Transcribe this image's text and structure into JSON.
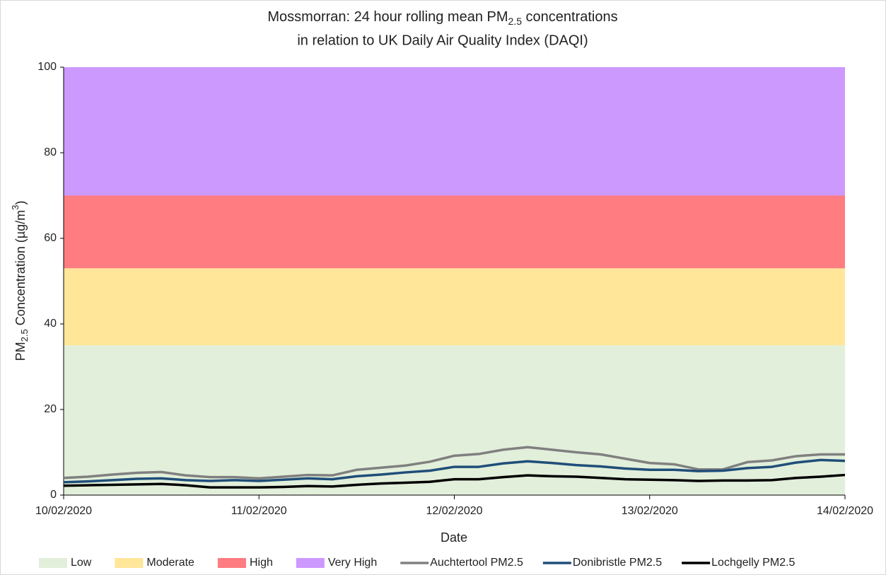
{
  "chart_data": {
    "type": "line",
    "title": {
      "line1": [
        "Mossmorran: 24 hour rolling mean PM",
        "2.5",
        " concentrations"
      ],
      "line2": "in relation to UK Daily Air Quality Index (DAQI)"
    },
    "x_label": "Date",
    "y_label": [
      "PM",
      "2.5",
      " Concentration (µg/m",
      "3",
      ")"
    ],
    "xlim": [
      0,
      4
    ],
    "xticks": [
      {
        "value": 0,
        "label": "10/02/2020"
      },
      {
        "value": 1,
        "label": "11/02/2020"
      },
      {
        "value": 2,
        "label": "12/02/2020"
      },
      {
        "value": 3,
        "label": "13/02/2020"
      },
      {
        "value": 4,
        "label": "14/02/2020"
      }
    ],
    "ylim": [
      0,
      100
    ],
    "yticks": [
      0,
      20,
      40,
      60,
      80,
      100
    ],
    "legend": "bottom",
    "bands": [
      {
        "name": "Low",
        "color": "#e2efda",
        "from": 0,
        "to": 35
      },
      {
        "name": "Moderate",
        "color": "#ffe699",
        "from": 35,
        "to": 53
      },
      {
        "name": "High",
        "color": "#ff7c80",
        "from": 53,
        "to": 70
      },
      {
        "name": "Very High",
        "color": "#cc99ff",
        "from": 70,
        "to": 100
      }
    ],
    "x": [
      0,
      0.125,
      0.25,
      0.375,
      0.5,
      0.625,
      0.75,
      0.875,
      1,
      1.125,
      1.25,
      1.375,
      1.5,
      1.625,
      1.75,
      1.875,
      2,
      2.125,
      2.25,
      2.375,
      2.5,
      2.625,
      2.75,
      2.875,
      3,
      3.125,
      3.25,
      3.375,
      3.5,
      3.625,
      3.75,
      3.875,
      4
    ],
    "series": [
      {
        "name": "Auchtertool PM2.5",
        "color": "#808080",
        "values": [
          4.0,
          4.3,
          4.8,
          5.2,
          5.4,
          4.6,
          4.2,
          4.2,
          3.9,
          4.3,
          4.7,
          4.6,
          5.9,
          6.4,
          6.9,
          7.8,
          9.2,
          9.6,
          10.6,
          11.2,
          10.6,
          10.0,
          9.5,
          8.5,
          7.5,
          7.2,
          6.0,
          6.0,
          7.7,
          8.1,
          9.1,
          9.5,
          9.5
        ]
      },
      {
        "name": "Donibristle PM2.5",
        "color": "#1f4e79",
        "values": [
          3.0,
          3.2,
          3.5,
          3.8,
          3.9,
          3.5,
          3.3,
          3.5,
          3.3,
          3.6,
          3.9,
          3.7,
          4.4,
          4.8,
          5.3,
          5.7,
          6.6,
          6.6,
          7.4,
          7.9,
          7.5,
          7.0,
          6.7,
          6.2,
          5.9,
          5.9,
          5.6,
          5.7,
          6.3,
          6.6,
          7.6,
          8.2,
          8.0
        ]
      },
      {
        "name": "Lochgelly PM2.5",
        "color": "#000000",
        "values": [
          2.2,
          2.3,
          2.4,
          2.5,
          2.6,
          2.3,
          1.8,
          1.8,
          1.8,
          1.9,
          2.1,
          2.0,
          2.4,
          2.7,
          2.9,
          3.1,
          3.7,
          3.7,
          4.2,
          4.6,
          4.4,
          4.3,
          4.0,
          3.7,
          3.6,
          3.5,
          3.3,
          3.4,
          3.4,
          3.5,
          4.0,
          4.3,
          4.7
        ]
      }
    ]
  }
}
